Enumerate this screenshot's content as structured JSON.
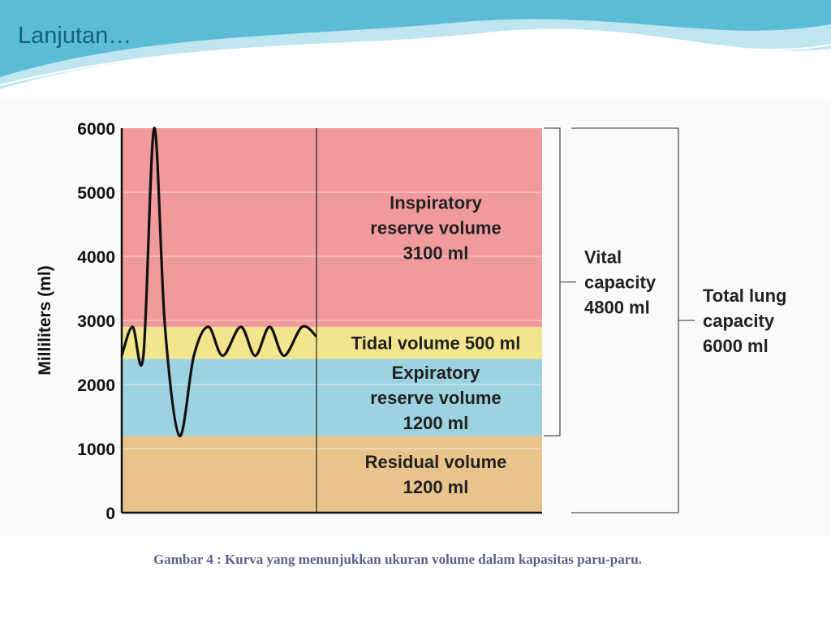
{
  "slide": {
    "title": "Lanjutan…",
    "caption": "Gambar 4 : Kurva yang menunjukkan ukuran volume dalam kapasitas paru-paru."
  },
  "colors": {
    "header_wave": "#5cbcd6",
    "header_wave_light": "#bfe6f0",
    "inspiratory": "#f19a9b",
    "tidal": "#f3e58e",
    "expiratory": "#9dd2e0",
    "residual": "#e8c48c"
  },
  "chart_data": {
    "type": "area",
    "ylabel": "Milliliters (ml)",
    "ylim": [
      0,
      6000
    ],
    "yticks": [
      "0",
      "1000",
      "2000",
      "3000",
      "4000",
      "5000",
      "6000"
    ],
    "grid": true,
    "regions": [
      {
        "key": "residual",
        "lines": [
          "Residual volume",
          "1200 ml"
        ],
        "from": 0,
        "to": 1200
      },
      {
        "key": "expiratory",
        "lines": [
          "Expiratory",
          "reserve volume",
          "1200 ml"
        ],
        "from": 1200,
        "to": 2400
      },
      {
        "key": "tidal",
        "lines": [
          "Tidal volume 500 ml"
        ],
        "from": 2400,
        "to": 2900
      },
      {
        "key": "inspiratory",
        "lines": [
          "Inspiratory",
          "reserve volume",
          "3100 ml"
        ],
        "from": 2900,
        "to": 6000
      }
    ],
    "capacities": [
      {
        "key": "vital",
        "lines": [
          "Vital",
          "capacity",
          "4800 ml"
        ],
        "from": 1200,
        "to": 6000
      },
      {
        "key": "total",
        "lines": [
          "Total lung",
          "capacity",
          "6000 ml"
        ],
        "from": 0,
        "to": 6000
      }
    ],
    "spirometer_trace": {
      "t": [
        0,
        0.3,
        0.6,
        0.9,
        1.2,
        1.6,
        2.0,
        2.4,
        2.8,
        3.3,
        3.7,
        4.1,
        4.5,
        5.0,
        5.4
      ],
      "volume": [
        2450,
        2900,
        2450,
        6000,
        2900,
        1200,
        2450,
        2900,
        2450,
        2900,
        2450,
        2900,
        2450,
        2900,
        2750
      ]
    }
  }
}
